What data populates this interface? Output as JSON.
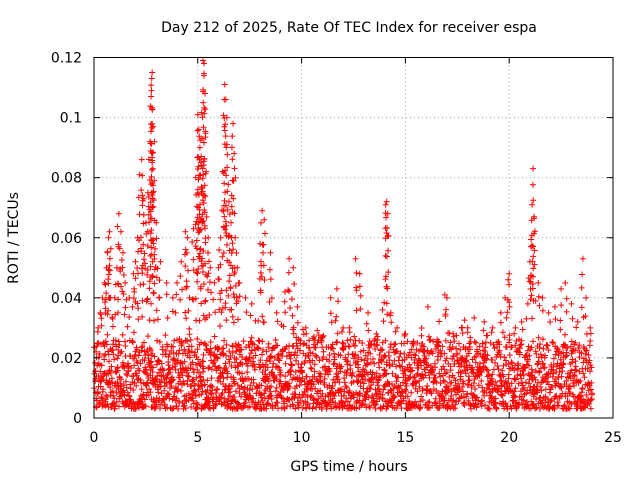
{
  "chart_data": {
    "type": "scatter",
    "title": "Day 212 of 2025, Rate Of TEC Index for receiver espa",
    "xlabel": "GPS time / hours",
    "ylabel": "ROTI / TECUs",
    "xlim": [
      0,
      25
    ],
    "ylim": [
      0,
      0.12
    ],
    "xticks": [
      0,
      5,
      10,
      15,
      20,
      25
    ],
    "xtick_labels": [
      "0",
      "5",
      "10",
      "15",
      "20",
      "25"
    ],
    "yticks": [
      0,
      0.02,
      0.04,
      0.06,
      0.08,
      0.1,
      0.12
    ],
    "ytick_labels": [
      "0",
      "0.02",
      "0.04",
      "0.06",
      "0.08",
      "0.1",
      "0.12"
    ],
    "grid": true,
    "marker": "+",
    "color": "#ff0000",
    "baseline_band": [
      0.003,
      0.026
    ],
    "data_x_range": [
      0,
      24
    ],
    "series": [
      {
        "name": "ROTI",
        "points": [
          [
            0.1,
            0.022
          ],
          [
            0.2,
            0.03
          ],
          [
            0.3,
            0.035
          ],
          [
            0.4,
            0.04
          ],
          [
            0.5,
            0.045
          ],
          [
            0.6,
            0.05
          ],
          [
            0.65,
            0.055
          ],
          [
            0.7,
            0.06
          ],
          [
            0.75,
            0.062
          ],
          [
            0.8,
            0.04
          ],
          [
            0.9,
            0.033
          ],
          [
            1.0,
            0.04
          ],
          [
            1.1,
            0.05
          ],
          [
            1.2,
            0.068
          ],
          [
            1.3,
            0.062
          ],
          [
            1.4,
            0.055
          ],
          [
            1.5,
            0.045
          ],
          [
            1.7,
            0.04
          ],
          [
            1.9,
            0.048
          ],
          [
            2.0,
            0.052
          ],
          [
            2.1,
            0.06
          ],
          [
            2.2,
            0.081
          ],
          [
            2.3,
            0.086
          ],
          [
            2.4,
            0.073
          ],
          [
            2.5,
            0.065
          ],
          [
            2.6,
            0.075
          ],
          [
            2.7,
            0.092
          ],
          [
            2.75,
            0.107
          ],
          [
            2.78,
            0.113
          ],
          [
            2.8,
            0.115
          ],
          [
            2.85,
            0.097
          ],
          [
            2.9,
            0.079
          ],
          [
            3.0,
            0.065
          ],
          [
            3.2,
            0.052
          ],
          [
            3.5,
            0.045
          ],
          [
            3.8,
            0.04
          ],
          [
            4.0,
            0.045
          ],
          [
            4.2,
            0.052
          ],
          [
            4.4,
            0.062
          ],
          [
            4.5,
            0.06
          ],
          [
            4.6,
            0.04
          ],
          [
            4.8,
            0.063
          ],
          [
            4.9,
            0.08
          ],
          [
            5.0,
            0.101
          ],
          [
            5.05,
            0.096
          ],
          [
            5.1,
            0.09
          ],
          [
            5.15,
            0.085
          ],
          [
            5.2,
            0.093
          ],
          [
            5.25,
            0.119
          ],
          [
            5.3,
            0.118
          ],
          [
            5.35,
            0.108
          ],
          [
            5.4,
            0.082
          ],
          [
            5.5,
            0.06
          ],
          [
            5.6,
            0.05
          ],
          [
            5.8,
            0.045
          ],
          [
            6.0,
            0.05
          ],
          [
            6.1,
            0.06
          ],
          [
            6.2,
            0.082
          ],
          [
            6.3,
            0.111
          ],
          [
            6.35,
            0.106
          ],
          [
            6.4,
            0.1
          ],
          [
            6.5,
            0.072
          ],
          [
            6.6,
            0.065
          ],
          [
            6.7,
            0.098
          ],
          [
            6.75,
            0.088
          ],
          [
            6.8,
            0.06
          ],
          [
            6.9,
            0.05
          ],
          [
            7.0,
            0.045
          ],
          [
            7.3,
            0.04
          ],
          [
            7.6,
            0.038
          ],
          [
            8.0,
            0.058
          ],
          [
            8.1,
            0.069
          ],
          [
            8.2,
            0.066
          ],
          [
            8.5,
            0.055
          ],
          [
            8.8,
            0.035
          ],
          [
            9.2,
            0.042
          ],
          [
            9.4,
            0.053
          ],
          [
            9.6,
            0.05
          ],
          [
            9.8,
            0.037
          ],
          [
            10.2,
            0.03
          ],
          [
            10.6,
            0.027
          ],
          [
            11.0,
            0.027
          ],
          [
            11.4,
            0.04
          ],
          [
            11.7,
            0.043
          ],
          [
            12.0,
            0.03
          ],
          [
            12.3,
            0.03
          ],
          [
            12.6,
            0.053
          ],
          [
            12.8,
            0.048
          ],
          [
            13.2,
            0.035
          ],
          [
            13.6,
            0.028
          ],
          [
            13.9,
            0.036
          ],
          [
            14.05,
            0.071
          ],
          [
            14.1,
            0.072
          ],
          [
            14.15,
            0.068
          ],
          [
            14.3,
            0.035
          ],
          [
            14.6,
            0.03
          ],
          [
            15.0,
            0.028
          ],
          [
            15.4,
            0.025
          ],
          [
            15.8,
            0.024
          ],
          [
            16.2,
            0.026
          ],
          [
            16.6,
            0.025
          ],
          [
            16.9,
            0.041
          ],
          [
            17.0,
            0.04
          ],
          [
            17.3,
            0.028
          ],
          [
            17.7,
            0.03
          ],
          [
            18.0,
            0.03
          ],
          [
            18.4,
            0.025
          ],
          [
            18.8,
            0.032
          ],
          [
            19.2,
            0.03
          ],
          [
            19.6,
            0.035
          ],
          [
            19.8,
            0.04
          ],
          [
            19.95,
            0.046
          ],
          [
            20.0,
            0.048
          ],
          [
            20.3,
            0.03
          ],
          [
            20.6,
            0.032
          ],
          [
            20.9,
            0.038
          ],
          [
            21.0,
            0.052
          ],
          [
            21.05,
            0.057
          ],
          [
            21.1,
            0.071
          ],
          [
            21.15,
            0.083
          ],
          [
            21.2,
            0.067
          ],
          [
            21.4,
            0.045
          ],
          [
            21.6,
            0.04
          ],
          [
            21.9,
            0.035
          ],
          [
            22.2,
            0.037
          ],
          [
            22.5,
            0.043
          ],
          [
            22.7,
            0.045
          ],
          [
            23.0,
            0.038
          ],
          [
            23.3,
            0.032
          ],
          [
            23.55,
            0.053
          ],
          [
            23.7,
            0.04
          ],
          [
            23.9,
            0.03
          ]
        ]
      }
    ]
  }
}
